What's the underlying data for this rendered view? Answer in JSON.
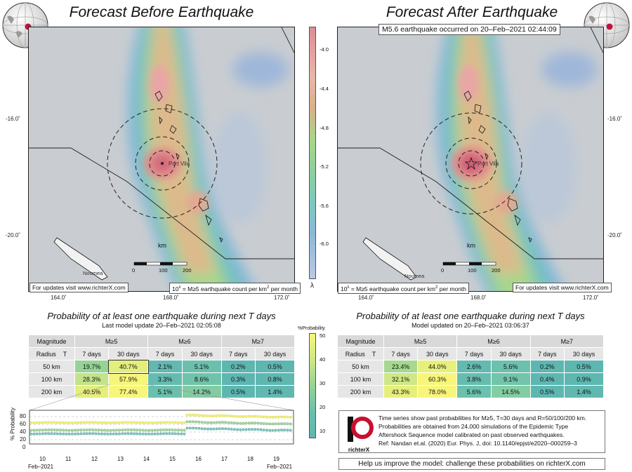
{
  "left_panel": {
    "title": "Forecast Before Earthquake",
    "map_note_left": "For updates visit www.richterX.com",
    "map_note_right_prefix": "10",
    "map_note_right_exp": "λ",
    "map_note_right_rest": " = M≥5 earthquake count per km",
    "map_note_right_sq": "2",
    "map_note_right_end": " per month",
    "place_city": "Port Vila",
    "place_noumea": "Noumea",
    "scale_unit": "km",
    "scale_ticks": [
      "0",
      "100",
      "200"
    ],
    "lat_labels": [
      "-16.0˚",
      "-20.0˚"
    ],
    "lon_labels": [
      "164.0˚",
      "168.0˚",
      "172.0˚"
    ]
  },
  "right_panel": {
    "title": "Forecast After Earthquake",
    "quake_banner": "M5.6 earthquake occurred on 20–Feb–2021 02:44:09",
    "map_note_left_prefix": "10",
    "map_note_left_exp": "λ",
    "map_note_left_rest": " = M≥5 earthquake count per km",
    "map_note_left_sq": "2",
    "map_note_left_end": " per month",
    "map_note_right": "For updates visit www.richterX.com",
    "place_city": "Port Vila",
    "place_noumea": "Noumea",
    "scale_unit": "km",
    "scale_ticks": [
      "0",
      "100",
      "200"
    ],
    "lat_labels": [
      "-16.0˚",
      "-20.0˚"
    ],
    "lon_labels": [
      "164.0˚",
      "168.0˚",
      "172.0˚"
    ]
  },
  "colorbar": {
    "ticks": [
      "-4.0",
      "-4.4",
      "-4.8",
      "-5.2",
      "-5.6",
      "-6.0"
    ],
    "label": "λ"
  },
  "prob_left": {
    "title": "Probability of at least one earthquake during next T days",
    "subtitle": "Last model update 20–Feb–2021 02:05:08",
    "col_magnitude": "Magnitude",
    "col_radius": "Radius",
    "col_t": "T",
    "mags": [
      "M≥5",
      "M≥6",
      "M≥7"
    ],
    "periods": [
      "7 days",
      "30 days"
    ],
    "rows": [
      {
        "radius": "50 km",
        "values": [
          "19.7%",
          "40.7%",
          "2.1%",
          "5.1%",
          "0.2%",
          "0.5%"
        ]
      },
      {
        "radius": "100 km",
        "values": [
          "28.3%",
          "57.9%",
          "3.3%",
          "8.6%",
          "0.3%",
          "0.8%"
        ]
      },
      {
        "radius": "200 km",
        "values": [
          "40.5%",
          "77.4%",
          "5.1%",
          "14.2%",
          "0.5%",
          "1.4%"
        ]
      }
    ]
  },
  "prob_right": {
    "title": "Probability of at least one earthquake during next T days",
    "subtitle": "Model updated on 20–Feb–2021 03:06:37",
    "col_magnitude": "Magnitude",
    "col_radius": "Radius",
    "col_t": "T",
    "mags": [
      "M≥5",
      "M≥6",
      "M≥7"
    ],
    "periods": [
      "7 days",
      "30 days"
    ],
    "rows": [
      {
        "radius": "50 km",
        "values": [
          "23.4%",
          "44.0%",
          "2.6%",
          "5.6%",
          "0.2%",
          "0.5%"
        ]
      },
      {
        "radius": "100 km",
        "values": [
          "32.1%",
          "60.3%",
          "3.8%",
          "9.1%",
          "0.4%",
          "0.9%"
        ]
      },
      {
        "radius": "200 km",
        "values": [
          "43.3%",
          "78.0%",
          "5.6%",
          "14.5%",
          "0.5%",
          "1.4%"
        ]
      }
    ]
  },
  "prob_colorbar": {
    "label": "%Probability",
    "ticks": [
      "50",
      "40",
      "30",
      "20",
      "10"
    ]
  },
  "timeseries": {
    "ylabel": "% Probability",
    "yticks": [
      "80",
      "60",
      "40",
      "20",
      "0"
    ],
    "xticks": [
      "10",
      "11",
      "12",
      "13",
      "14",
      "15",
      "16",
      "17",
      "18",
      "19"
    ],
    "x_start_label": "Feb–2021",
    "x_end_label": "Feb–2021"
  },
  "info": {
    "logo_text": "richterX",
    "line1": "Time series show past probabilities for M≥5, T=30 days and R=50/100/200 km.",
    "line2": "Probabilities are obtained from 24,000 simulations of the Epidemic Type",
    "line3": "Aftershock Sequence model calibrated on past observed earthquakes.",
    "line4": "Ref: Nandan et.al. (2020) Eur. Phys. J, doi: 10.1140/epjst/e2020–000259–3",
    "footer": "Help us improve the model: challenge these probabilities on richterX.com"
  },
  "colors": {
    "table_hi": "#f4f27a",
    "table_mid": "#8fd19a",
    "table_low": "#5fb8b0"
  }
}
